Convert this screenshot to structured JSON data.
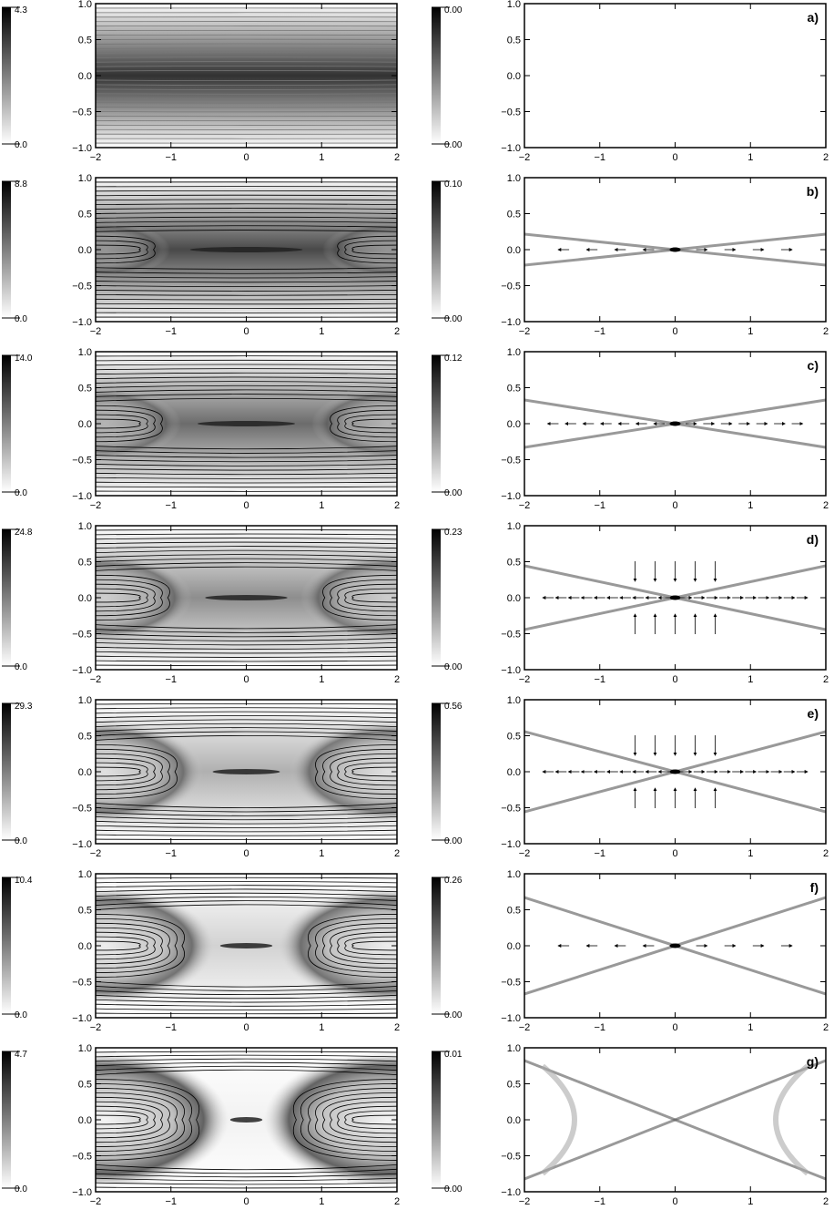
{
  "figure": {
    "rows": [
      {
        "label": "a)",
        "left_cbar": {
          "max": "4.3",
          "min": "0.0"
        },
        "right_cbar": {
          "max": "0.00",
          "min": "0.00"
        },
        "left_level": 0.05,
        "right_level": 0.0,
        "right_arrows": "none"
      },
      {
        "label": "b)",
        "left_cbar": {
          "max": "8.8",
          "min": "0.0"
        },
        "right_cbar": {
          "max": "0.10",
          "min": "0.00"
        },
        "left_level": 0.15,
        "right_level": 0.2,
        "right_arrows": "sparse"
      },
      {
        "label": "c)",
        "left_cbar": {
          "max": "14.0",
          "min": "0.0"
        },
        "right_cbar": {
          "max": "0.12",
          "min": "0.00"
        },
        "left_level": 0.3,
        "right_level": 0.35,
        "right_arrows": "medium"
      },
      {
        "label": "d)",
        "left_cbar": {
          "max": "24.8",
          "min": "0.0"
        },
        "right_cbar": {
          "max": "0.23",
          "min": "0.00"
        },
        "left_level": 0.45,
        "right_level": 0.5,
        "right_arrows": "dense"
      },
      {
        "label": "e)",
        "left_cbar": {
          "max": "29.3",
          "min": "0.0"
        },
        "right_cbar": {
          "max": "0.56",
          "min": "0.00"
        },
        "left_level": 0.6,
        "right_level": 0.65,
        "right_arrows": "dense"
      },
      {
        "label": "f)",
        "left_cbar": {
          "max": "10.4",
          "min": "0.0"
        },
        "right_cbar": {
          "max": "0.26",
          "min": "0.00"
        },
        "left_level": 0.75,
        "right_level": 0.8,
        "right_arrows": "sparse"
      },
      {
        "label": "g)",
        "left_cbar": {
          "max": "4.7",
          "min": "0.0"
        },
        "right_cbar": {
          "max": "0.01",
          "min": "0.00"
        },
        "left_level": 0.95,
        "right_level": 1.0,
        "right_arrows": "none"
      }
    ],
    "x_ticks": [
      "−2",
      "−1",
      "0",
      "1",
      "2"
    ],
    "y_ticks": [
      "1.0",
      "0.5",
      "0.0",
      "−0.5",
      "−1.0"
    ],
    "x_tick_values": [
      -2,
      -1,
      0,
      1,
      2
    ],
    "y_tick_values": [
      1.0,
      0.5,
      0.0,
      -0.5,
      -1.0
    ],
    "x_range": [
      -2,
      2
    ],
    "y_range": [
      -1,
      1
    ]
  }
}
